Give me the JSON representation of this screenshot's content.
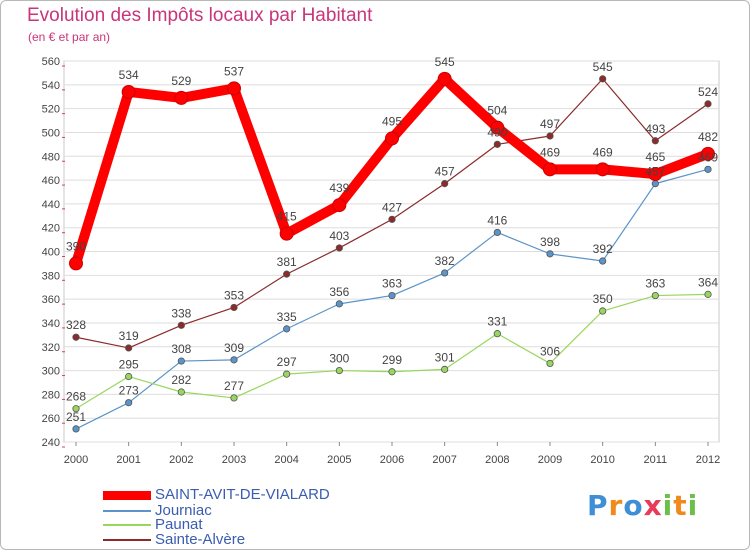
{
  "header": {
    "title": "Evolution des Impôts locaux par Habitant",
    "subtitle": "(en € et par an)"
  },
  "chart_data": {
    "type": "line",
    "title": "Evolution des Impôts locaux par Habitant",
    "subtitle": "(en € et par an)",
    "xlabel": "",
    "ylabel": "",
    "x": [
      "2000",
      "2001",
      "2002",
      "2003",
      "2004",
      "2005",
      "2006",
      "2007",
      "2008",
      "2009",
      "2010",
      "2011",
      "2012"
    ],
    "ylim": [
      240,
      560
    ],
    "yticks": [
      240,
      260,
      280,
      300,
      320,
      340,
      360,
      380,
      400,
      420,
      440,
      460,
      480,
      500,
      520,
      540,
      560
    ],
    "grid": "horizontal",
    "legend_position": "bottom-left",
    "series": [
      {
        "name": "SAINT-AVIT-DE-VIALARD",
        "color": "#ff0000",
        "values": [
          390,
          534,
          529,
          537,
          415,
          439,
          495,
          545,
          504,
          469,
          469,
          465,
          482
        ]
      },
      {
        "name": "Journiac",
        "color": "#5b94c8",
        "values": [
          251,
          273,
          308,
          309,
          335,
          356,
          363,
          382,
          416,
          398,
          392,
          457,
          469
        ]
      },
      {
        "name": "Paunat",
        "color": "#99d65f",
        "values": [
          268,
          295,
          282,
          277,
          297,
          300,
          299,
          301,
          331,
          306,
          350,
          363,
          364
        ]
      },
      {
        "name": "Sainte-Alvère",
        "color": "#8b2b2b",
        "values": [
          328,
          319,
          338,
          353,
          381,
          403,
          427,
          457,
          490,
          497,
          545,
          493,
          524
        ]
      }
    ]
  },
  "legend": {
    "items": [
      {
        "label": "SAINT-AVIT-DE-VIALARD",
        "color": "#ff0000"
      },
      {
        "label": "Journiac",
        "color": "#5b94c8"
      },
      {
        "label": "Paunat",
        "color": "#99d65f"
      },
      {
        "label": "Sainte-Alvère",
        "color": "#8b2b2b"
      }
    ]
  },
  "logo": {
    "text": "Proxiti",
    "letters": [
      {
        "ch": "P",
        "color": "#3f8fd6"
      },
      {
        "ch": "r",
        "color": "#f08a1c"
      },
      {
        "ch": "o",
        "color": "#3f8fd6"
      },
      {
        "ch": "x",
        "color": "#e83a5a"
      },
      {
        "ch": "i",
        "color": "#6cc04a"
      },
      {
        "ch": "t",
        "color": "#f08a1c"
      },
      {
        "ch": "i",
        "color": "#6cc04a"
      }
    ]
  }
}
